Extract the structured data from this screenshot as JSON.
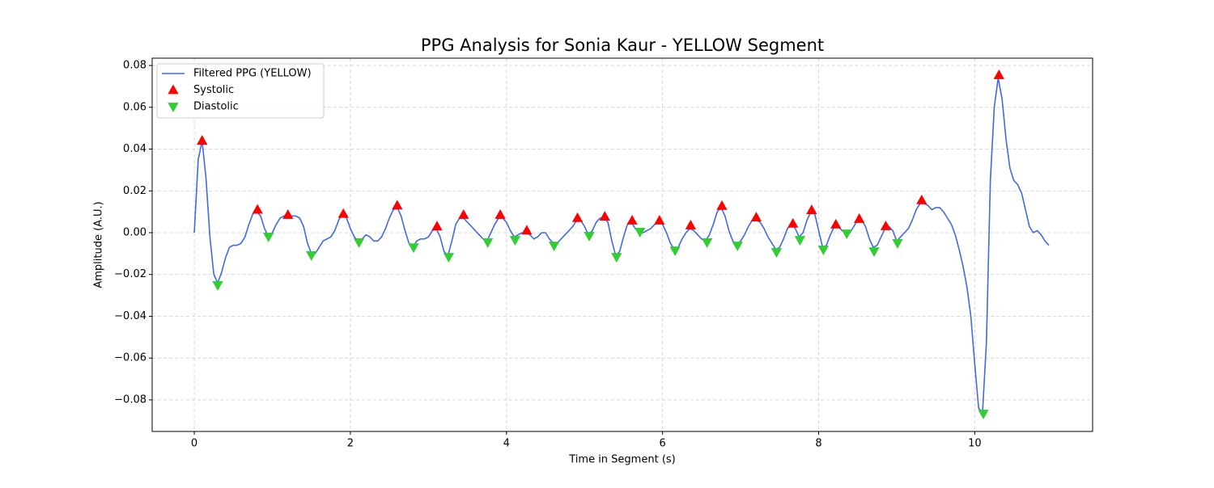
{
  "chart_data": {
    "type": "line",
    "title": "PPG Analysis for Sonia Kaur - YELLOW Segment",
    "x_label": "Time in Segment (s)",
    "y_label": "Amplitude (A.U.)",
    "xlim": [
      -0.54,
      11.51
    ],
    "ylim": [
      -0.0951,
      0.0835
    ],
    "xticks": [
      0,
      2,
      4,
      6,
      8,
      10
    ],
    "yticks": [
      {
        "value": -0.08,
        "label": "−0.08"
      },
      {
        "value": -0.06,
        "label": "−0.06"
      },
      {
        "value": -0.04,
        "label": "−0.04"
      },
      {
        "value": -0.02,
        "label": "−0.02"
      },
      {
        "value": 0,
        "label": "0.00"
      },
      {
        "value": 0.02,
        "label": "0.02"
      },
      {
        "value": 0.04,
        "label": "0.04"
      },
      {
        "value": 0.06,
        "label": "0.06"
      },
      {
        "value": 0.08,
        "label": "0.08"
      }
    ],
    "grid": true,
    "legend": "upper left",
    "series": [
      {
        "name": "Filtered PPG (YELLOW)",
        "color": "#4169e1",
        "mark": "line",
        "x": [
          0,
          0.05,
          0.1,
          0.15,
          0.2,
          0.25,
          0.3,
          0.35,
          0.4,
          0.45,
          0.5,
          0.55,
          0.6,
          0.65,
          0.7,
          0.75,
          0.8,
          0.85,
          0.9,
          0.95,
          1,
          1.05,
          1.1,
          1.15,
          1.2,
          1.25,
          1.3,
          1.35,
          1.4,
          1.45,
          1.5,
          1.55,
          1.6,
          1.65,
          1.7,
          1.75,
          1.8,
          1.85,
          1.9,
          1.95,
          2,
          2.05,
          2.1,
          2.15,
          2.2,
          2.25,
          2.3,
          2.35,
          2.4,
          2.45,
          2.5,
          2.55,
          2.6,
          2.65,
          2.7,
          2.75,
          2.8,
          2.85,
          2.9,
          2.95,
          3,
          3.05,
          3.1,
          3.15,
          3.2,
          3.25,
          3.3,
          3.35,
          3.4,
          3.45,
          3.5,
          3.55,
          3.6,
          3.65,
          3.7,
          3.75,
          3.8,
          3.85,
          3.9,
          3.95,
          4,
          4.05,
          4.1,
          4.15,
          4.2,
          4.25,
          4.3,
          4.35,
          4.4,
          4.45,
          4.5,
          4.55,
          4.6,
          4.65,
          4.7,
          4.75,
          4.8,
          4.85,
          4.9,
          4.95,
          5,
          5.05,
          5.1,
          5.15,
          5.2,
          5.25,
          5.3,
          5.35,
          5.4,
          5.45,
          5.5,
          5.55,
          5.6,
          5.65,
          5.7,
          5.75,
          5.8,
          5.85,
          5.9,
          5.95,
          6,
          6.05,
          6.1,
          6.15,
          6.2,
          6.25,
          6.3,
          6.35,
          6.4,
          6.45,
          6.5,
          6.55,
          6.6,
          6.65,
          6.7,
          6.75,
          6.8,
          6.85,
          6.9,
          6.95,
          7,
          7.05,
          7.1,
          7.15,
          7.2,
          7.25,
          7.3,
          7.35,
          7.4,
          7.45,
          7.5,
          7.55,
          7.6,
          7.65,
          7.7,
          7.75,
          7.8,
          7.85,
          7.9,
          7.95,
          8,
          8.05,
          8.1,
          8.15,
          8.2,
          8.25,
          8.3,
          8.35,
          8.4,
          8.45,
          8.5,
          8.55,
          8.6,
          8.65,
          8.7,
          8.75,
          8.8,
          8.85,
          8.9,
          8.95,
          9,
          9.05,
          9.1,
          9.15,
          9.2,
          9.25,
          9.3,
          9.35,
          9.4,
          9.45,
          9.5,
          9.55,
          9.6,
          9.65,
          9.7,
          9.75,
          9.8,
          9.85,
          9.9,
          9.95,
          10,
          10.05,
          10.1,
          10.15,
          10.2,
          10.25,
          10.3,
          10.35,
          10.4,
          10.45,
          10.5,
          10.55,
          10.6,
          10.65,
          10.7,
          10.75,
          10.8,
          10.85,
          10.9,
          10.95
        ],
        "values": [
          0,
          0.035,
          0.044,
          0.026,
          -0.002,
          -0.02,
          -0.024,
          -0.019,
          -0.012,
          -0.007,
          -0.006,
          -0.006,
          -0.005,
          -0.002,
          0.004,
          0.009,
          0.01,
          0.008,
          0.002,
          -0.002,
          0,
          0.004,
          0.007,
          0.008,
          0.008,
          0.008,
          0.008,
          0.007,
          0.003,
          -0.005,
          -0.01,
          -0.01,
          -0.007,
          -0.004,
          -0.003,
          -0.002,
          0.001,
          0.006,
          0.009,
          0.007,
          0.002,
          -0.002,
          -0.004,
          -0.003,
          -0.001,
          -0.002,
          -0.004,
          -0.004,
          -0.002,
          0.002,
          0.007,
          0.011,
          0.012,
          0.008,
          0.001,
          -0.005,
          -0.007,
          -0.004,
          -0.003,
          -0.003,
          -0.002,
          0.001,
          0.002,
          -0.002,
          -0.009,
          -0.011,
          -0.004,
          0.004,
          0.007,
          0.007,
          0.005,
          0.003,
          0.001,
          -0.001,
          -0.003,
          -0.004,
          0,
          0.004,
          0.007,
          0.007,
          0.005,
          0.001,
          -0.002,
          -0.001,
          0,
          0,
          -0.001,
          -0.003,
          -0.002,
          0,
          0,
          -0.003,
          -0.005,
          -0.005,
          -0.003,
          -0.001,
          0.001,
          0.003,
          0.006,
          0.006,
          0.003,
          -0.001,
          0.001,
          0.005,
          0.007,
          0.007,
          0.005,
          -0.004,
          -0.011,
          -0.009,
          -0.002,
          0.004,
          0.005,
          0.002,
          0,
          0,
          0.001,
          0.002,
          0.004,
          0.005,
          0.004,
          0,
          -0.005,
          -0.008,
          -0.007,
          -0.003,
          0,
          0.002,
          0.001,
          -0.001,
          -0.003,
          -0.004,
          -0.001,
          0.004,
          0.01,
          0.012,
          0.008,
          0.001,
          -0.004,
          -0.006,
          -0.004,
          -0.001,
          0.003,
          0.006,
          0.006,
          0.005,
          0.002,
          -0.002,
          -0.005,
          -0.008,
          -0.007,
          -0.003,
          0.002,
          0.004,
          0.002,
          -0.002,
          0,
          0.006,
          0.01,
          0.009,
          0.001,
          -0.007,
          -0.006,
          -0.001,
          0.003,
          0.003,
          0.001,
          0,
          0,
          0.003,
          0.006,
          0.006,
          0.003,
          -0.003,
          -0.007,
          -0.006,
          -0.002,
          0.002,
          0.003,
          0.001,
          -0.004,
          -0.002,
          0,
          0.002,
          0.006,
          0.011,
          0.014,
          0.014,
          0.013,
          0.011,
          0.012,
          0.012,
          0.01,
          0.007,
          0.004,
          -0.001,
          -0.008,
          -0.016,
          -0.026,
          -0.04,
          -0.063,
          -0.084,
          -0.086,
          -0.052,
          0.025,
          0.06,
          0.074,
          0.064,
          0.045,
          0.031,
          0.025,
          0.023,
          0.019,
          0.011,
          0.003,
          0,
          0.001,
          -0.001,
          -0.004,
          -0.006
        ]
      },
      {
        "name": "Systolic",
        "color": "#ff0000",
        "mark": "triangle-up",
        "x": [
          0.1,
          0.81,
          1.2,
          1.91,
          2.6,
          3.11,
          3.45,
          3.92,
          4.26,
          4.91,
          5.26,
          5.61,
          5.96,
          6.36,
          6.76,
          7.2,
          7.67,
          7.91,
          8.22,
          8.52,
          8.86,
          9.32,
          10.31
        ],
        "values": [
          0.044,
          0.011,
          0.0085,
          0.009,
          0.013,
          0.003,
          0.0085,
          0.0085,
          0.001,
          0.007,
          0.0077,
          0.0058,
          0.0058,
          0.0035,
          0.0128,
          0.0073,
          0.0043,
          0.0108,
          0.0039,
          0.0066,
          0.0031,
          0.0155,
          0.0754
        ]
      },
      {
        "name": "Diastolic",
        "color": "#32cd32",
        "mark": "triangle-down",
        "x": [
          0.3,
          0.95,
          1.5,
          2.11,
          2.81,
          3.26,
          3.76,
          4.11,
          4.61,
          5.06,
          5.41,
          5.71,
          6.16,
          6.57,
          6.96,
          7.46,
          7.76,
          8.06,
          8.36,
          8.71,
          9.01,
          10.11
        ],
        "values": [
          -0.0251,
          -0.0019,
          -0.0108,
          -0.0046,
          -0.007,
          -0.0116,
          -0.0046,
          -0.0035,
          -0.0062,
          -0.0015,
          -0.0116,
          0.0004,
          -0.0085,
          -0.0046,
          -0.0062,
          -0.0093,
          -0.0035,
          -0.0081,
          -0.0004,
          -0.0089,
          -0.005,
          -0.0866
        ]
      }
    ]
  }
}
